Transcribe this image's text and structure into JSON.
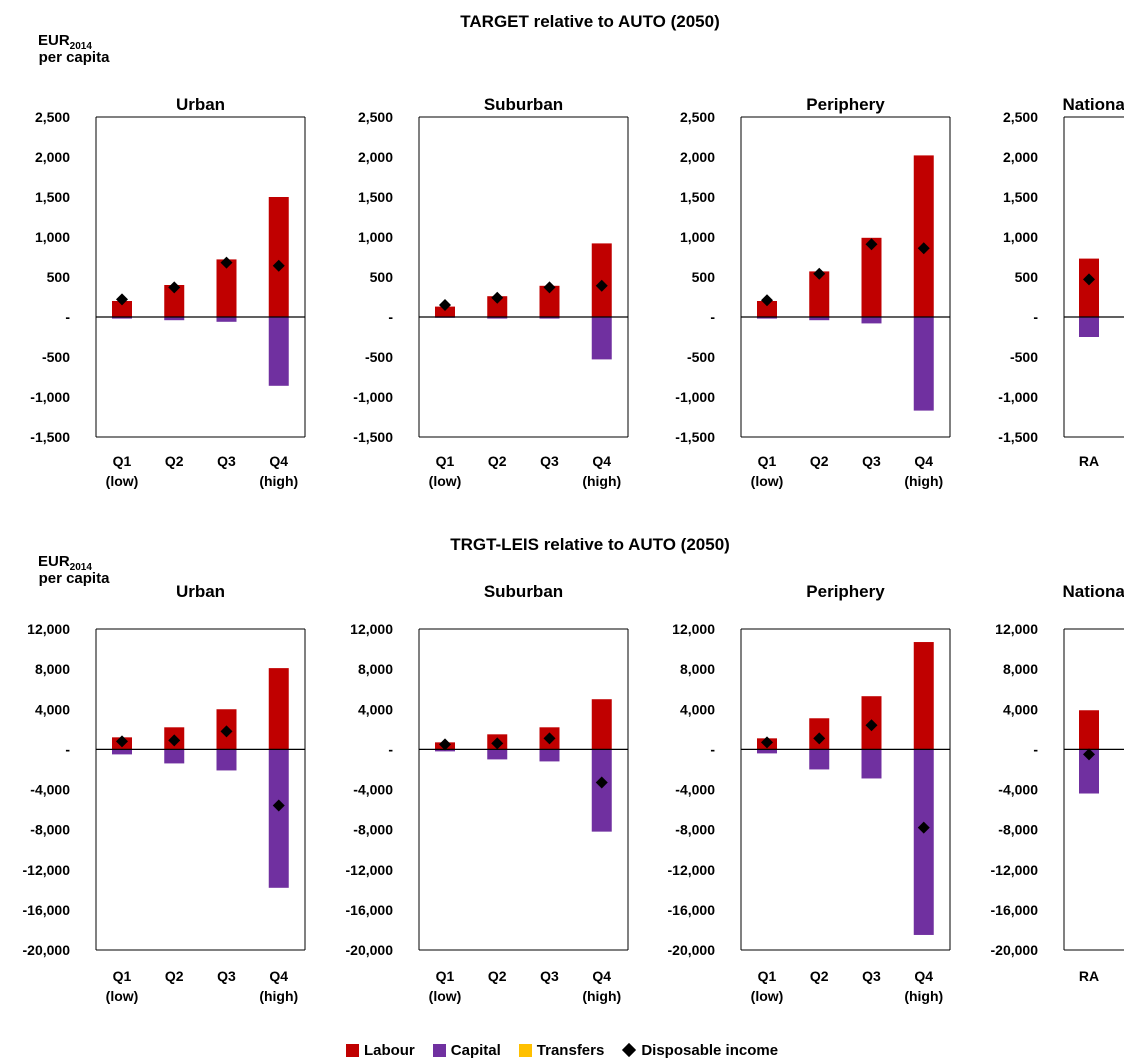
{
  "colors": {
    "labour": "#c00000",
    "capital": "#7030a0",
    "transfers": "#ffc000",
    "disposable": "#000000",
    "frame": "#000000"
  },
  "legend": {
    "labour": "Labour",
    "capital": "Capital",
    "transfers": "Transfers",
    "disposable": "Disposable income"
  },
  "chart_data": [
    {
      "type": "bar",
      "stacked": true,
      "figure_title": "TARGET relative to AUTO (2050)",
      "unit_label": [
        "EUR",
        "2014",
        "per capita"
      ],
      "ylim": [
        -1500,
        2500
      ],
      "yticks": [
        2500,
        2000,
        1500,
        1000,
        500,
        0,
        -500,
        -1000,
        -1500
      ],
      "ytick_labels": [
        "2,500",
        "2,000",
        "1,500",
        "1,000",
        "500",
        "-",
        "-500",
        "-1,000",
        "-1,500"
      ],
      "panels": [
        {
          "title": "Urban",
          "categories": [
            [
              "Q1",
              "(low)"
            ],
            [
              "Q2",
              ""
            ],
            [
              "Q3",
              ""
            ],
            [
              "Q4",
              "(high)"
            ]
          ],
          "series": [
            {
              "name": "Labour",
              "values": [
                200,
                400,
                720,
                1500
              ]
            },
            {
              "name": "Capital",
              "values": [
                -20,
                -40,
                -60,
                -860
              ]
            },
            {
              "name": "Transfers",
              "values": [
                0,
                0,
                0,
                0
              ]
            }
          ],
          "disposable_income": [
            220,
            370,
            680,
            640
          ]
        },
        {
          "title": "Suburban",
          "categories": [
            [
              "Q1",
              "(low)"
            ],
            [
              "Q2",
              ""
            ],
            [
              "Q3",
              ""
            ],
            [
              "Q4",
              "(high)"
            ]
          ],
          "series": [
            {
              "name": "Labour",
              "values": [
                130,
                260,
                390,
                920
              ]
            },
            {
              "name": "Capital",
              "values": [
                -10,
                -20,
                -20,
                -530
              ]
            },
            {
              "name": "Transfers",
              "values": [
                0,
                0,
                0,
                0
              ]
            }
          ],
          "disposable_income": [
            150,
            240,
            370,
            390
          ]
        },
        {
          "title": "Periphery",
          "categories": [
            [
              "Q1",
              "(low)"
            ],
            [
              "Q2",
              ""
            ],
            [
              "Q3",
              ""
            ],
            [
              "Q4",
              "(high)"
            ]
          ],
          "series": [
            {
              "name": "Labour",
              "values": [
                200,
                570,
                990,
                2020
              ]
            },
            {
              "name": "Capital",
              "values": [
                -20,
                -40,
                -80,
                -1170
              ]
            },
            {
              "name": "Transfers",
              "values": [
                0,
                0,
                0,
                0
              ]
            }
          ],
          "disposable_income": [
            210,
            540,
            910,
            860
          ]
        },
        {
          "title": "National",
          "categories": [
            [
              "RA",
              ""
            ]
          ],
          "series": [
            {
              "name": "Labour",
              "values": [
                730
              ]
            },
            {
              "name": "Capital",
              "values": [
                -250
              ]
            },
            {
              "name": "Transfers",
              "values": [
                0
              ]
            }
          ],
          "disposable_income": [
            470
          ]
        }
      ]
    },
    {
      "type": "bar",
      "stacked": true,
      "figure_title": "TRGT-LEIS relative to AUTO (2050)",
      "unit_label": [
        "EUR",
        "2014",
        "per capita"
      ],
      "ylim": [
        -20000,
        12000
      ],
      "yticks": [
        12000,
        8000,
        4000,
        0,
        -4000,
        -8000,
        -12000,
        -16000,
        -20000
      ],
      "ytick_labels": [
        "12,000",
        "8,000",
        "4,000",
        "-",
        "-4,000",
        "-8,000",
        "-12,000",
        "-16,000",
        "-20,000"
      ],
      "panels": [
        {
          "title": "Urban",
          "categories": [
            [
              "Q1",
              "(low)"
            ],
            [
              "Q2",
              ""
            ],
            [
              "Q3",
              ""
            ],
            [
              "Q4",
              "(high)"
            ]
          ],
          "series": [
            {
              "name": "Labour",
              "values": [
                1200,
                2200,
                4000,
                8100
              ]
            },
            {
              "name": "Capital",
              "values": [
                -500,
                -1400,
                -2100,
                -13800
              ]
            },
            {
              "name": "Transfers",
              "values": [
                0,
                0,
                0,
                0
              ]
            }
          ],
          "disposable_income": [
            800,
            900,
            1800,
            -5600
          ]
        },
        {
          "title": "Suburban",
          "categories": [
            [
              "Q1",
              "(low)"
            ],
            [
              "Q2",
              ""
            ],
            [
              "Q3",
              ""
            ],
            [
              "Q4",
              "(high)"
            ]
          ],
          "series": [
            {
              "name": "Labour",
              "values": [
                700,
                1500,
                2200,
                5000
              ]
            },
            {
              "name": "Capital",
              "values": [
                -200,
                -1000,
                -1200,
                -8200
              ]
            },
            {
              "name": "Transfers",
              "values": [
                0,
                0,
                0,
                0
              ]
            }
          ],
          "disposable_income": [
            500,
            600,
            1100,
            -3300
          ]
        },
        {
          "title": "Periphery",
          "categories": [
            [
              "Q1",
              "(low)"
            ],
            [
              "Q2",
              ""
            ],
            [
              "Q3",
              ""
            ],
            [
              "Q4",
              "(high)"
            ]
          ],
          "series": [
            {
              "name": "Labour",
              "values": [
                1100,
                3100,
                5300,
                10700
              ]
            },
            {
              "name": "Capital",
              "values": [
                -400,
                -2000,
                -2900,
                -18500
              ]
            },
            {
              "name": "Transfers",
              "values": [
                0,
                0,
                0,
                0
              ]
            }
          ],
          "disposable_income": [
            700,
            1100,
            2400,
            -7800
          ]
        },
        {
          "title": "National",
          "categories": [
            [
              "RA",
              ""
            ]
          ],
          "series": [
            {
              "name": "Labour",
              "values": [
                3900
              ]
            },
            {
              "name": "Capital",
              "values": [
                -4400
              ]
            },
            {
              "name": "Transfers",
              "values": [
                0
              ]
            }
          ],
          "disposable_income": [
            -500
          ]
        }
      ]
    }
  ]
}
